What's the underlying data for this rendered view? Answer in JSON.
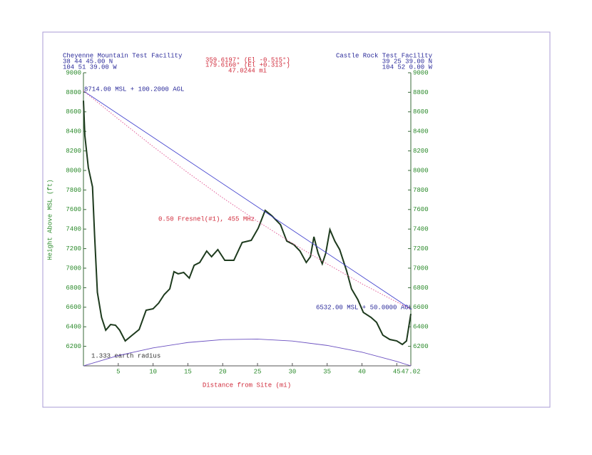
{
  "chart_data": {
    "type": "line",
    "site_a": {
      "name": "Cheyenne Mountain Test Facility",
      "lat": "38 44 45.00 N",
      "lon": "104 51 39.00 W"
    },
    "site_b": {
      "name": "Castle Rock Test Facility",
      "lat": "39 25 39.00 N",
      "lon": "104 52 0.00 W"
    },
    "bearings": [
      "359.6197° (El -0.515°)",
      "179.6160° (El +0.313°)"
    ],
    "distance": "47.0244 mi",
    "antenna_a": "8714.00 MSL + 100.2000 AGL",
    "antenna_b": "6532.00 MSL + 50.0000 AGL",
    "fresnel_label": "0.50 Fresnel(#1), 455 MHz",
    "earth_label": "1.333 earth radius",
    "xlabel": "Distance from Site (mi)",
    "ylabel": "Height Above MSL (ft)",
    "xlim": [
      0,
      47.02
    ],
    "ylim": [
      6000,
      9000
    ],
    "xticks": [
      5,
      10,
      15,
      20,
      25,
      30,
      35,
      40,
      45,
      47.02
    ],
    "yticks": [
      6200,
      6400,
      6600,
      6800,
      7000,
      7200,
      7400,
      7600,
      7800,
      8000,
      8200,
      8400,
      8600,
      8800,
      9000
    ],
    "series": [
      {
        "color": "#1d3a1d",
        "style": "solid",
        "width": 2,
        "x": [
          0,
          0.2,
          0.7,
          1.3,
          1.6,
          2.0,
          2.6,
          3.2,
          3.9,
          4.6,
          5.2,
          6.0,
          7.0,
          8.0,
          9.0,
          10.0,
          10.8,
          11.6,
          12.4,
          13.0,
          13.6,
          14.4,
          15.2,
          15.9,
          16.7,
          17.7,
          18.4,
          19.3,
          20.3,
          21.6,
          22.8,
          24.1,
          25.1,
          26.1,
          27.1,
          28.3,
          29.2,
          30.2,
          31.1,
          32.0,
          32.6,
          33.1,
          33.7,
          34.3,
          34.8,
          35.4,
          36.1,
          36.8,
          37.8,
          38.5,
          39.4,
          40.2,
          41.3,
          42.1,
          43.0,
          44.0,
          45.0,
          45.8,
          46.4,
          47.02
        ],
        "values": [
          8714,
          8358,
          8029,
          7832,
          7336,
          6752,
          6496,
          6365,
          6423,
          6416,
          6365,
          6255,
          6314,
          6372,
          6569,
          6584,
          6642,
          6730,
          6788,
          6964,
          6942,
          6956,
          6898,
          7029,
          7058,
          7175,
          7117,
          7190,
          7080,
          7080,
          7263,
          7285,
          7409,
          7591,
          7533,
          7445,
          7277,
          7241,
          7175,
          7058,
          7117,
          7321,
          7153,
          7044,
          7153,
          7394,
          7277,
          7190,
          6971,
          6788,
          6679,
          6547,
          6496,
          6445,
          6314,
          6270,
          6255,
          6219,
          6255,
          6532
        ]
      },
      {
        "color": "#3a3acc",
        "style": "solid",
        "width": 0.8,
        "x": [
          0,
          47.02
        ],
        "values": [
          8814,
          6582
        ]
      },
      {
        "color": "#e0508f",
        "style": "dotted",
        "width": 0.9,
        "x": [
          0,
          5,
          10,
          15,
          20,
          25,
          30,
          35,
          40,
          45,
          47.02
        ],
        "values": [
          8814,
          8527,
          8244,
          7977,
          7720,
          7479,
          7255,
          7043,
          6840,
          6653,
          6582
        ]
      },
      {
        "color": "#6a4fc0",
        "style": "solid",
        "width": 0.9,
        "x": [
          0,
          5,
          10,
          15,
          20,
          25,
          30,
          35,
          40,
          45,
          47.02
        ],
        "values": [
          6000,
          6105,
          6184,
          6239,
          6269,
          6274,
          6254,
          6209,
          6140,
          6045,
          6000
        ]
      }
    ]
  }
}
